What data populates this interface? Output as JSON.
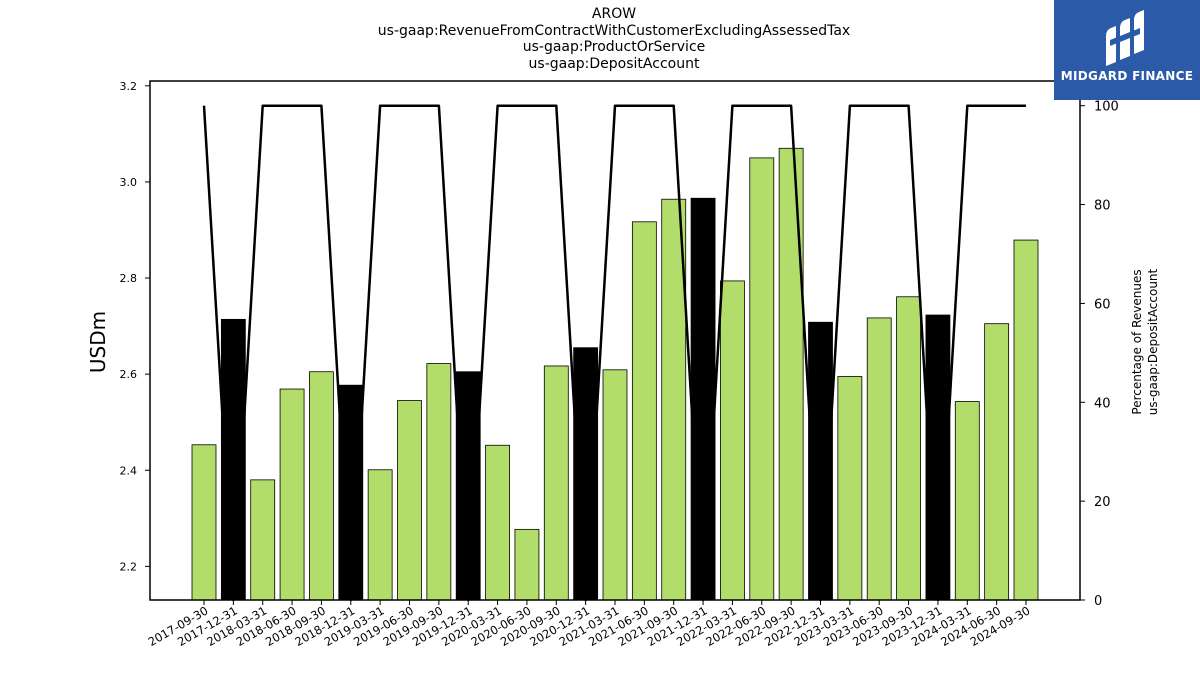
{
  "chart_data": {
    "type": "bar",
    "title_lines": [
      "AROW",
      "us-gaap:RevenueFromContractWithCustomerExcludingAssessedTax",
      "us-gaap:ProductOrService",
      "us-gaap:DepositAccount"
    ],
    "ylabel": "USDm",
    "y2label_lines": [
      "Percentage of Revenues",
      "us-gaap:DepositAccount"
    ],
    "ylim": [
      2.13,
      3.21
    ],
    "y_ticks": [
      "2.2",
      "2.4",
      "2.6",
      "2.8",
      "3.0",
      "3.2"
    ],
    "y2lim": [
      0,
      105
    ],
    "y2_ticks": [
      "0",
      "20",
      "40",
      "60",
      "80",
      "100"
    ],
    "categories": [
      "2017-09-30",
      "2017-12-31",
      "2018-03-31",
      "2018-06-30",
      "2018-09-30",
      "2018-12-31",
      "2019-03-31",
      "2019-06-30",
      "2019-09-30",
      "2019-12-31",
      "2020-03-31",
      "2020-06-30",
      "2020-09-30",
      "2020-12-31",
      "2021-03-31",
      "2021-06-30",
      "2021-09-30",
      "2021-12-31",
      "2022-03-31",
      "2022-06-30",
      "2022-09-30",
      "2022-12-31",
      "2023-03-31",
      "2023-06-30",
      "2023-09-30",
      "2023-12-31",
      "2024-03-31",
      "2024-06-30",
      "2024-09-30"
    ],
    "values": [
      2.453,
      2.714,
      2.38,
      2.569,
      2.605,
      2.577,
      2.401,
      2.545,
      2.622,
      2.605,
      2.452,
      2.277,
      2.617,
      2.655,
      2.609,
      2.917,
      2.964,
      2.966,
      2.794,
      3.05,
      3.07,
      2.708,
      2.595,
      2.717,
      2.761,
      2.723,
      2.543,
      2.705,
      2.879
    ],
    "highlight": [
      false,
      true,
      false,
      false,
      false,
      true,
      false,
      false,
      false,
      true,
      false,
      false,
      false,
      true,
      false,
      false,
      false,
      true,
      false,
      false,
      false,
      true,
      false,
      false,
      false,
      true,
      false,
      false,
      false
    ],
    "series": [
      {
        "values": [
          100,
          0,
          100,
          100,
          100,
          0,
          100,
          100,
          100,
          0,
          100,
          100,
          100,
          0,
          100,
          100,
          100,
          0,
          100,
          100,
          100,
          0,
          100,
          100,
          100,
          0,
          100,
          100,
          100
        ]
      }
    ],
    "colors": {
      "bar": "#b3dd6a",
      "highlight_bar": "#000000",
      "line": "#000000"
    }
  },
  "logo": {
    "text": "MIDGARD FINANCE"
  }
}
